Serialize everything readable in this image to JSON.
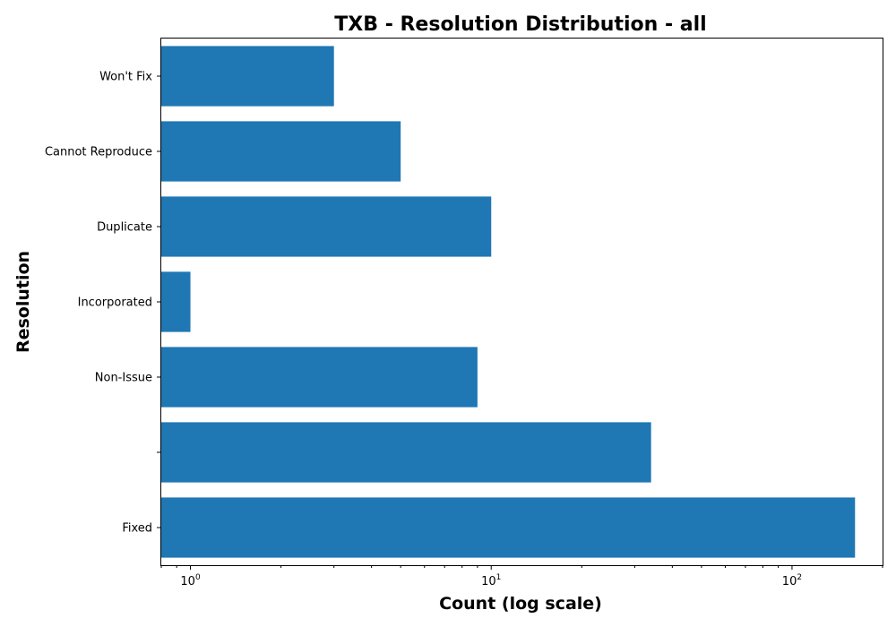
{
  "chart_data": {
    "type": "bar",
    "orientation": "horizontal",
    "title": "TXB - Resolution Distribution - all",
    "xlabel": "Count (log scale)",
    "ylabel": "Resolution",
    "x_scale": "log",
    "xlim": [
      0.8,
      200
    ],
    "x_ticks": [
      {
        "value": 1,
        "base": "10",
        "exp": "0"
      },
      {
        "value": 10,
        "base": "10",
        "exp": "1"
      },
      {
        "value": 100,
        "base": "10",
        "exp": "2"
      }
    ],
    "categories": [
      "Won't Fix",
      "Cannot Reproduce",
      "Duplicate",
      "Incorporated",
      "Non-Issue",
      "",
      "Fixed"
    ],
    "values": [
      3,
      5,
      10,
      1,
      9,
      34,
      162
    ],
    "bar_color": "#1f77b4",
    "grid": false,
    "legend": "none"
  }
}
